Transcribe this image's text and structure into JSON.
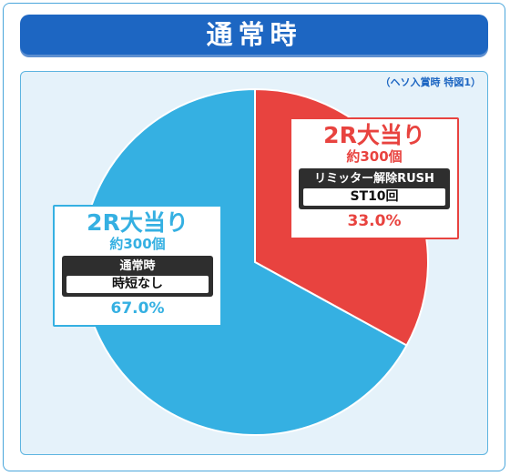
{
  "header": {
    "title": "通常時"
  },
  "note": "（ヘソ入賞時 特図1）",
  "chart_data": {
    "type": "pie",
    "title": "通常時",
    "slices": [
      {
        "name": "2R大当り",
        "sub": "約300個",
        "mode": "リミッター解除RUSH",
        "mode_detail": "ST10回",
        "value": 33.0,
        "label": "33.0%",
        "color": "#e8433f"
      },
      {
        "name": "2R大当り",
        "sub": "約300個",
        "mode": "通常時",
        "mode_detail": "時短なし",
        "value": 67.0,
        "label": "67.0%",
        "color": "#35b0e2"
      }
    ]
  }
}
